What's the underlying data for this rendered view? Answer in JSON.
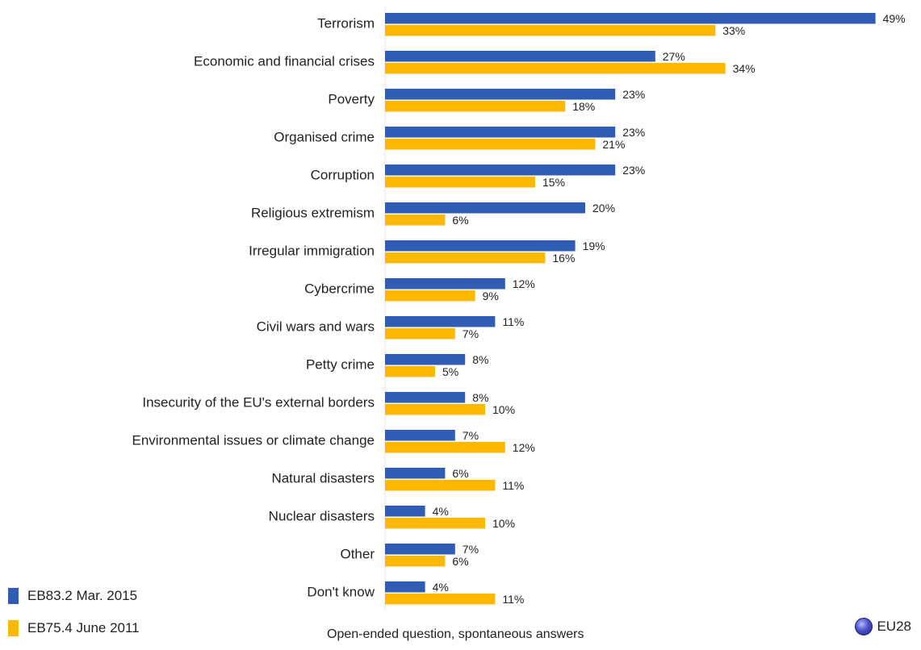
{
  "chart_data": {
    "type": "bar",
    "orientation": "horizontal",
    "categories": [
      "Terrorism",
      "Economic and financial crises",
      "Poverty",
      "Organised crime",
      "Corruption",
      "Religious extremism",
      "Irregular immigration",
      "Cybercrime",
      "Civil wars and wars",
      "Petty crime",
      "Insecurity of the EU's external borders",
      "Environmental issues or climate change",
      "Natural disasters",
      "Nuclear disasters",
      "Other",
      "Don't know"
    ],
    "series": [
      {
        "name": "EB83.2 Mar. 2015",
        "color": "#2f5cb4",
        "values": [
          49,
          27,
          23,
          23,
          23,
          20,
          19,
          12,
          11,
          8,
          8,
          7,
          6,
          4,
          7,
          4
        ]
      },
      {
        "name": "EB75.4 June 2011",
        "color": "#ffb800",
        "values": [
          33,
          34,
          18,
          21,
          15,
          6,
          16,
          9,
          7,
          5,
          10,
          12,
          11,
          10,
          6,
          11
        ]
      }
    ],
    "value_suffix": "%",
    "xlim": [
      0,
      49
    ],
    "grid": false,
    "note": "Open-ended question, spontaneous answers",
    "scope": "EU28",
    "legend_position": "bottom-left"
  },
  "icons": {
    "scope": "globe-icon"
  }
}
